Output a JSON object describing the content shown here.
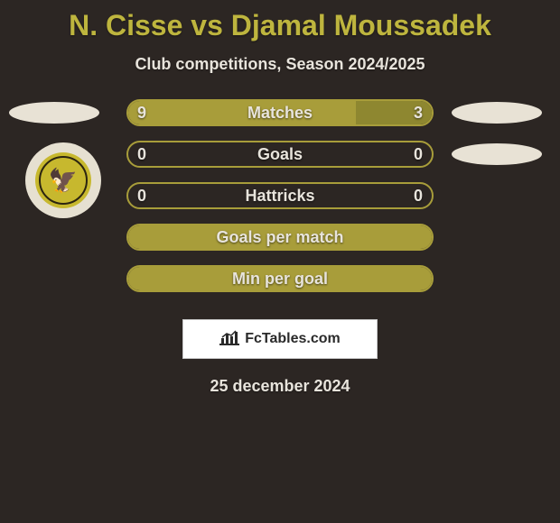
{
  "title": "N. Cisse vs Djamal Moussadek",
  "subtitle": "Club competitions, Season 2024/2025",
  "date": "25 december 2024",
  "footer": {
    "brand": "FcTables.com"
  },
  "colors": {
    "background": "#2c2623",
    "accent": "#beb53e",
    "bar_fill": "#a89d3a",
    "bar_fill_alt": "#8e8730",
    "text": "#e8e4dc",
    "badge": "#e8e2d5"
  },
  "club_logo": {
    "text": "UNION SPORTIVE QUEVILLAISE",
    "glyph": "🦅"
  },
  "stats": [
    {
      "label": "Matches",
      "left_val": "9",
      "right_val": "3",
      "left_pct": 75,
      "right_pct": 25,
      "show_vals": true
    },
    {
      "label": "Goals",
      "left_val": "0",
      "right_val": "0",
      "left_pct": 0,
      "right_pct": 0,
      "show_vals": true
    },
    {
      "label": "Hattricks",
      "left_val": "0",
      "right_val": "0",
      "left_pct": 0,
      "right_pct": 0,
      "show_vals": true
    },
    {
      "label": "Goals per match",
      "left_val": "",
      "right_val": "",
      "left_pct": 100,
      "right_pct": 0,
      "show_vals": false
    },
    {
      "label": "Min per goal",
      "left_val": "",
      "right_val": "",
      "left_pct": 100,
      "right_pct": 0,
      "show_vals": false
    }
  ],
  "side_badges_left": [
    true,
    false,
    false,
    false,
    false
  ],
  "side_badges_right": [
    true,
    true,
    false,
    false,
    false
  ]
}
